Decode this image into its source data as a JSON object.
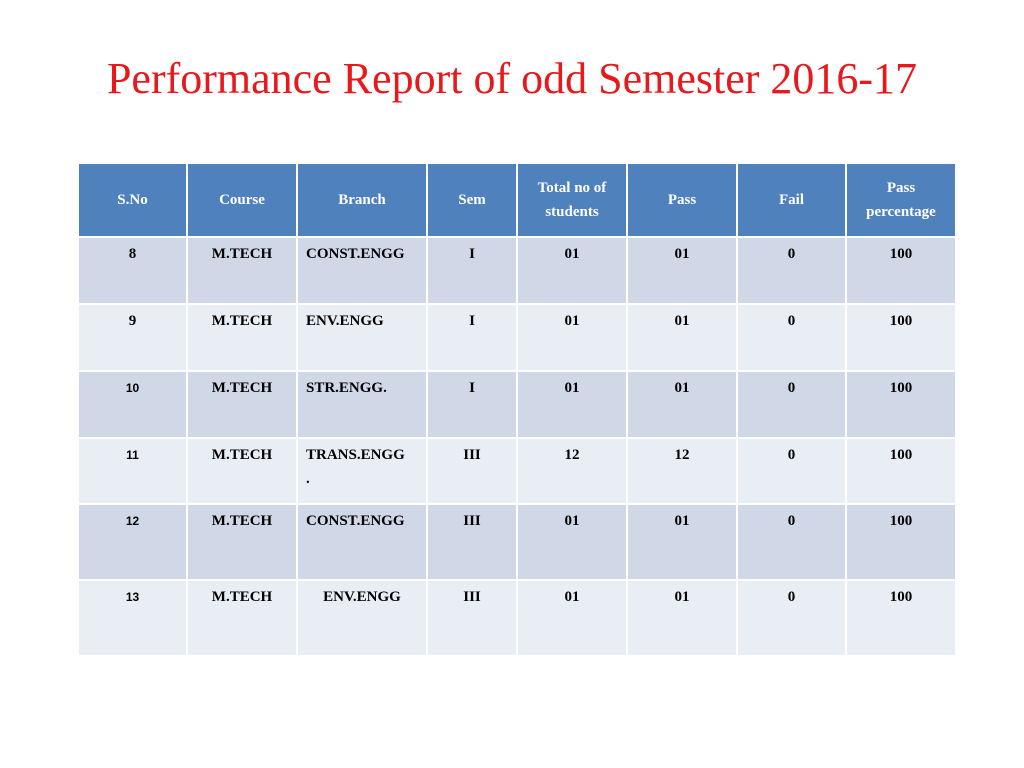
{
  "title": "Performance Report of odd Semester 2016-17",
  "table": {
    "headers": {
      "sno": "S.No",
      "course": "Course",
      "branch": "Branch",
      "sem": "Sem",
      "total_line1": "Total no of",
      "total_line2": "students",
      "pass": "Pass",
      "fail": "Fail",
      "pct_line1": "Pass",
      "pct_line2": "percentage"
    },
    "rows": [
      {
        "sno": "8",
        "course": "M.TECH",
        "branch": "CONST.ENGG",
        "branch_extra": "",
        "sem": "I",
        "total": "01",
        "pass": "01",
        "fail": "0",
        "pct": "100"
      },
      {
        "sno": "9",
        "course": "M.TECH",
        "branch": "ENV.ENGG",
        "branch_extra": "",
        "sem": "I",
        "total": "01",
        "pass": "01",
        "fail": "0",
        "pct": "100"
      },
      {
        "sno": "10",
        "course": "M.TECH",
        "branch": "STR.ENGG.",
        "branch_extra": "",
        "sem": "I",
        "total": "01",
        "pass": "01",
        "fail": "0",
        "pct": "100"
      },
      {
        "sno": "11",
        "course": "M.TECH",
        "branch": "TRANS.ENGG",
        "branch_extra": ".",
        "sem": "III",
        "total": "12",
        "pass": "12",
        "fail": "0",
        "pct": "100"
      },
      {
        "sno": "12",
        "course": "M.TECH",
        "branch": "CONST.ENGG",
        "branch_extra": "",
        "sem": "III",
        "total": "01",
        "pass": "01",
        "fail": "0",
        "pct": "100"
      },
      {
        "sno": "13",
        "course": "M.TECH",
        "branch": "ENV.ENGG",
        "branch_extra": "",
        "sem": "III",
        "total": "01",
        "pass": "01",
        "fail": "0",
        "pct": "100"
      }
    ]
  }
}
